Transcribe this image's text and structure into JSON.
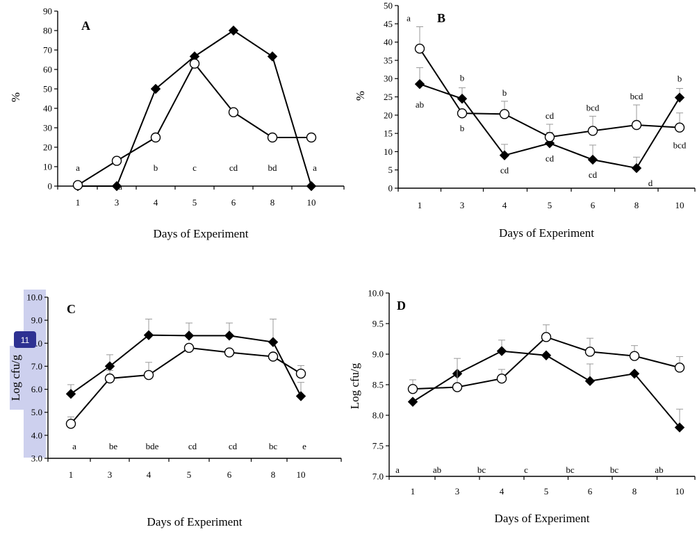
{
  "overlay": {
    "badge_label": "11"
  },
  "colors": {
    "axis": "#000000",
    "error_bar": "#999999",
    "highlight": "#cdd0ee",
    "badge": "#2e3192"
  },
  "chart_data": [
    {
      "panel": "A",
      "type": "line",
      "categories": [
        "1",
        "3",
        "4",
        "5",
        "6",
        "8",
        "10"
      ],
      "xlabel": "Days of Experiment",
      "ylabel": "%",
      "ylim": [
        0,
        90
      ],
      "yticks": [
        "0",
        "10",
        "20",
        "30",
        "40",
        "50",
        "60",
        "70",
        "80",
        "90"
      ],
      "series": [
        {
          "marker": "filled-diamond",
          "values": [
            0,
            0,
            50,
            66.7,
            80,
            66.7,
            0
          ]
        },
        {
          "marker": "open-circle",
          "values": [
            0.5,
            13,
            25,
            63,
            38,
            25,
            25
          ]
        }
      ],
      "significance_letters": [
        "a",
        "a",
        "b",
        "c",
        "cd",
        "bd",
        "a"
      ]
    },
    {
      "panel": "B",
      "type": "line",
      "categories": [
        "1",
        "3",
        "4",
        "5",
        "6",
        "8",
        "10"
      ],
      "xlabel": "Days of Experiment",
      "ylabel": "%",
      "ylim": [
        0,
        50
      ],
      "yticks": [
        "0",
        "5",
        "10",
        "15",
        "20",
        "25",
        "30",
        "35",
        "40",
        "45",
        "50"
      ],
      "series": [
        {
          "marker": "filled-diamond",
          "values": [
            28.5,
            24.5,
            9,
            12.3,
            7.8,
            5.5,
            24.8
          ],
          "errors": [
            4.5,
            3,
            3,
            3,
            4,
            3,
            2.5
          ],
          "letters": [
            "ab",
            "b",
            "cd",
            "cd",
            "cd",
            "d",
            "b"
          ]
        },
        {
          "marker": "open-circle",
          "values": [
            38.2,
            20.5,
            20.3,
            14,
            15.7,
            17.3,
            16.6
          ],
          "errors": [
            6,
            0,
            3.5,
            3.5,
            4,
            5.5,
            4
          ],
          "letters": [
            "a",
            "b",
            "b",
            "cd",
            "bcd",
            "bcd",
            "bcd"
          ]
        }
      ]
    },
    {
      "panel": "C",
      "type": "line",
      "categories": [
        "1",
        "3",
        "4",
        "5",
        "6",
        "8",
        "10"
      ],
      "xlabel": "Days of Experiment",
      "ylabel": "Log cfu/g",
      "ylim": [
        3.0,
        10.0
      ],
      "yticks": [
        "3.0",
        "4.0",
        "5.0",
        "6.0",
        "7.0",
        "8.0",
        "9.0",
        "10.0"
      ],
      "series": [
        {
          "marker": "filled-diamond",
          "values": [
            5.8,
            7.0,
            8.35,
            8.33,
            8.33,
            8.05,
            5.7
          ],
          "errors": [
            0.4,
            0.5,
            0.7,
            0.55,
            0.55,
            1.0,
            0.6
          ]
        },
        {
          "marker": "open-circle",
          "values": [
            4.5,
            6.47,
            6.62,
            7.8,
            7.6,
            7.42,
            6.68
          ],
          "errors": [
            0.3,
            0.35,
            0.55,
            0.0,
            0.0,
            0.0,
            0.35
          ]
        }
      ],
      "significance_letters": [
        "a",
        "be",
        "bde",
        "cd",
        "cd",
        "bc",
        "e"
      ]
    },
    {
      "panel": "D",
      "type": "line",
      "categories": [
        "1",
        "3",
        "4",
        "5",
        "6",
        "8",
        "10"
      ],
      "xlabel": "Days of Experiment",
      "ylabel": "Log cfu/g",
      "ylim": [
        7.0,
        10.0
      ],
      "yticks": [
        "7.0",
        "7.5",
        "8.0",
        "8.5",
        "9.0",
        "9.5",
        "10.0"
      ],
      "series": [
        {
          "marker": "filled-diamond",
          "values": [
            8.22,
            8.68,
            9.05,
            8.98,
            8.56,
            8.68,
            7.8
          ],
          "errors": [
            0,
            0,
            0.18,
            0,
            0.28,
            0,
            0.3
          ]
        },
        {
          "marker": "open-circle",
          "values": [
            8.43,
            8.46,
            8.6,
            9.28,
            9.04,
            8.97,
            8.78
          ],
          "errors": [
            0.15,
            0.47,
            0.15,
            0.2,
            0.22,
            0.17,
            0.18
          ]
        }
      ],
      "significance_letters": [
        "a",
        "ab",
        "bc",
        "c",
        "bc",
        "bc",
        "ab"
      ]
    }
  ]
}
